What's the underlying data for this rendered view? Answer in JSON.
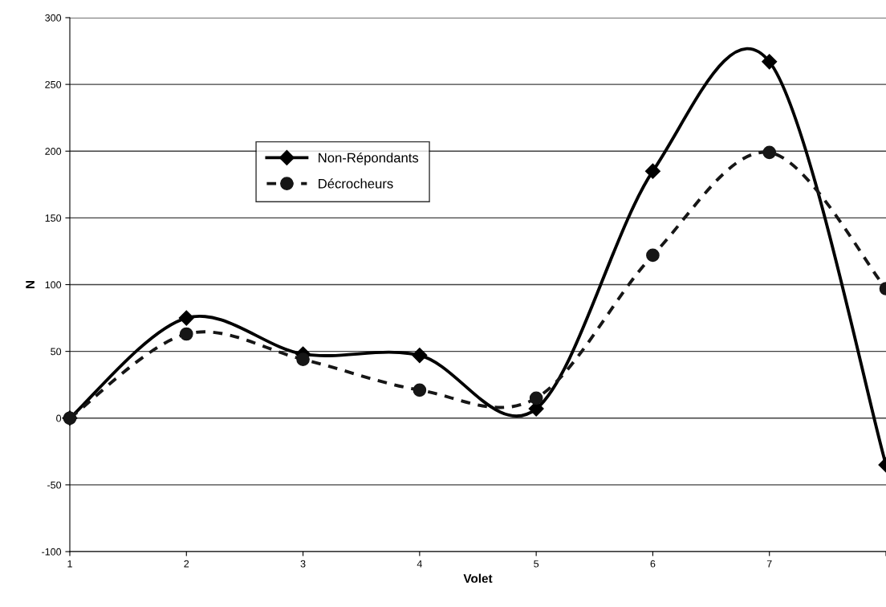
{
  "chart_data": {
    "type": "line",
    "xlabel": "Volet",
    "ylabel": "N",
    "categories": [
      "1",
      "2",
      "3",
      "4",
      "5",
      "6",
      "7",
      null
    ],
    "series": [
      {
        "name": "Non-Répondants",
        "color": "#000000",
        "marker": "diamond",
        "line_style": "solid",
        "values": [
          0,
          75,
          48,
          47,
          7,
          185,
          267,
          -35
        ]
      },
      {
        "name": "Décrocheurs",
        "color": "#161616",
        "marker": "circle",
        "line_style": "dashed",
        "values": [
          0,
          63,
          44,
          21,
          15,
          122,
          199,
          97
        ]
      }
    ],
    "ylim": [
      -100,
      300
    ],
    "yticks": [
      -100,
      -50,
      0,
      50,
      100,
      150,
      200,
      250,
      300
    ],
    "grid": "y",
    "legend": "top left"
  }
}
